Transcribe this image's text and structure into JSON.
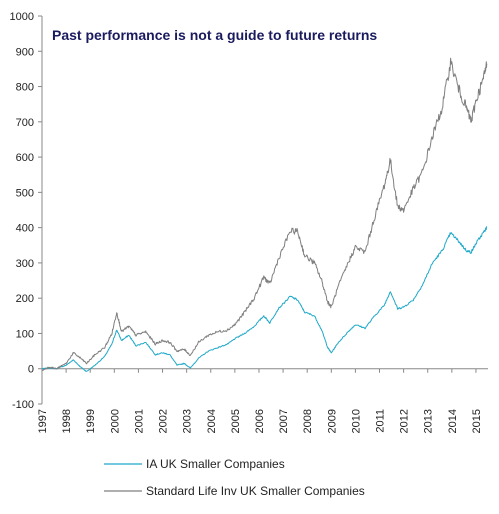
{
  "chart_data": {
    "type": "line",
    "title": "Past performance is not a guide to future returns",
    "xlabel": "",
    "ylabel": "",
    "ylim": [
      -100,
      1000
    ],
    "yticks": [
      -100,
      0,
      100,
      200,
      300,
      400,
      500,
      600,
      700,
      800,
      900,
      1000
    ],
    "xlim": [
      1997,
      2015.5
    ],
    "xticks": [
      "1997",
      "1998",
      "1999",
      "2000",
      "2001",
      "2002",
      "2003",
      "2004",
      "2005",
      "2006",
      "2007",
      "2008",
      "2009",
      "2010",
      "2011",
      "2012",
      "2013",
      "2014",
      "2015"
    ],
    "grid": false,
    "legend_position": "bottom",
    "colors": {
      "title": "#1a1a5e",
      "axis": "#888888"
    },
    "series": [
      {
        "name": "IA UK Smaller Companies",
        "color": "#1fa8c9",
        "points": [
          [
            1997.0,
            0
          ],
          [
            1997.3,
            2
          ],
          [
            1997.6,
            0
          ],
          [
            1998.0,
            10
          ],
          [
            1998.3,
            25
          ],
          [
            1998.6,
            5
          ],
          [
            1998.85,
            -8
          ],
          [
            1999.2,
            10
          ],
          [
            1999.6,
            35
          ],
          [
            1999.9,
            70
          ],
          [
            2000.1,
            110
          ],
          [
            2000.3,
            80
          ],
          [
            2000.6,
            95
          ],
          [
            2000.9,
            65
          ],
          [
            2001.3,
            75
          ],
          [
            2001.7,
            40
          ],
          [
            2002.0,
            45
          ],
          [
            2002.3,
            40
          ],
          [
            2002.6,
            10
          ],
          [
            2002.9,
            15
          ],
          [
            2003.15,
            2
          ],
          [
            2003.5,
            30
          ],
          [
            2003.9,
            50
          ],
          [
            2004.3,
            60
          ],
          [
            2004.7,
            70
          ],
          [
            2005.0,
            85
          ],
          [
            2005.4,
            100
          ],
          [
            2005.8,
            120
          ],
          [
            2006.2,
            150
          ],
          [
            2006.45,
            130
          ],
          [
            2006.8,
            170
          ],
          [
            2007.3,
            205
          ],
          [
            2007.6,
            195
          ],
          [
            2007.9,
            160
          ],
          [
            2008.3,
            150
          ],
          [
            2008.6,
            110
          ],
          [
            2008.85,
            60
          ],
          [
            2009.0,
            45
          ],
          [
            2009.3,
            75
          ],
          [
            2009.7,
            105
          ],
          [
            2010.0,
            125
          ],
          [
            2010.4,
            115
          ],
          [
            2010.8,
            150
          ],
          [
            2011.2,
            180
          ],
          [
            2011.45,
            220
          ],
          [
            2011.75,
            170
          ],
          [
            2012.0,
            175
          ],
          [
            2012.4,
            195
          ],
          [
            2012.8,
            240
          ],
          [
            2013.2,
            300
          ],
          [
            2013.6,
            335
          ],
          [
            2013.95,
            385
          ],
          [
            2014.3,
            360
          ],
          [
            2014.6,
            335
          ],
          [
            2014.8,
            330
          ],
          [
            2015.0,
            355
          ],
          [
            2015.3,
            385
          ],
          [
            2015.45,
            400
          ]
        ]
      },
      {
        "name": "Standard Life Inv UK Smaller Companies",
        "color": "#7f7f7f",
        "points": [
          [
            1997.0,
            -5
          ],
          [
            1997.3,
            5
          ],
          [
            1997.6,
            0
          ],
          [
            1998.0,
            15
          ],
          [
            1998.3,
            45
          ],
          [
            1998.6,
            30
          ],
          [
            1998.85,
            15
          ],
          [
            1999.2,
            40
          ],
          [
            1999.6,
            60
          ],
          [
            1999.9,
            100
          ],
          [
            2000.1,
            160
          ],
          [
            2000.3,
            105
          ],
          [
            2000.6,
            120
          ],
          [
            2000.9,
            95
          ],
          [
            2001.3,
            105
          ],
          [
            2001.7,
            70
          ],
          [
            2002.0,
            80
          ],
          [
            2002.3,
            75
          ],
          [
            2002.6,
            50
          ],
          [
            2002.9,
            55
          ],
          [
            2003.15,
            38
          ],
          [
            2003.5,
            75
          ],
          [
            2003.9,
            95
          ],
          [
            2004.3,
            105
          ],
          [
            2004.7,
            110
          ],
          [
            2005.0,
            125
          ],
          [
            2005.4,
            160
          ],
          [
            2005.8,
            200
          ],
          [
            2006.2,
            260
          ],
          [
            2006.45,
            240
          ],
          [
            2006.8,
            310
          ],
          [
            2007.3,
            390
          ],
          [
            2007.6,
            390
          ],
          [
            2007.9,
            320
          ],
          [
            2008.3,
            300
          ],
          [
            2008.6,
            250
          ],
          [
            2008.85,
            190
          ],
          [
            2009.0,
            175
          ],
          [
            2009.3,
            235
          ],
          [
            2009.7,
            300
          ],
          [
            2010.0,
            345
          ],
          [
            2010.4,
            330
          ],
          [
            2010.8,
            430
          ],
          [
            2011.2,
            520
          ],
          [
            2011.45,
            590
          ],
          [
            2011.75,
            460
          ],
          [
            2012.0,
            450
          ],
          [
            2012.4,
            510
          ],
          [
            2012.8,
            560
          ],
          [
            2013.2,
            660
          ],
          [
            2013.6,
            740
          ],
          [
            2013.95,
            870
          ],
          [
            2014.3,
            790
          ],
          [
            2014.6,
            740
          ],
          [
            2014.8,
            700
          ],
          [
            2015.0,
            760
          ],
          [
            2015.3,
            820
          ],
          [
            2015.45,
            865
          ]
        ]
      }
    ]
  }
}
